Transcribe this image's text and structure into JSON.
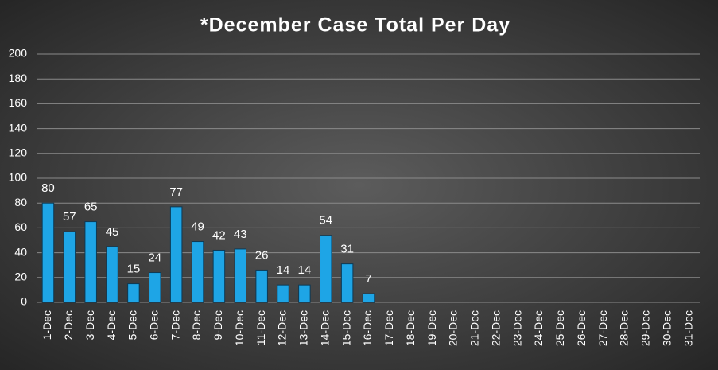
{
  "chart_data": {
    "type": "bar",
    "title": "*December Case Total Per Day",
    "categories": [
      "1-Dec",
      "2-Dec",
      "3-Dec",
      "4-Dec",
      "5-Dec",
      "6-Dec",
      "7-Dec",
      "8-Dec",
      "9-Dec",
      "10-Dec",
      "11-Dec",
      "12-Dec",
      "13-Dec",
      "14-Dec",
      "15-Dec",
      "16-Dec",
      "17-Dec",
      "18-Dec",
      "19-Dec",
      "20-Dec",
      "21-Dec",
      "22-Dec",
      "23-Dec",
      "24-Dec",
      "25-Dec",
      "26-Dec",
      "27-Dec",
      "28-Dec",
      "29-Dec",
      "30-Dec",
      "31-Dec"
    ],
    "values": [
      80,
      57,
      65,
      45,
      15,
      24,
      77,
      49,
      42,
      43,
      26,
      14,
      14,
      54,
      31,
      7,
      null,
      null,
      null,
      null,
      null,
      null,
      null,
      null,
      null,
      null,
      null,
      null,
      null,
      null,
      null
    ],
    "color": "#1ea5e6",
    "ylim": [
      0,
      200
    ],
    "yticks": [
      0,
      20,
      40,
      60,
      80,
      100,
      120,
      140,
      160,
      180,
      200
    ],
    "grid": true
  }
}
